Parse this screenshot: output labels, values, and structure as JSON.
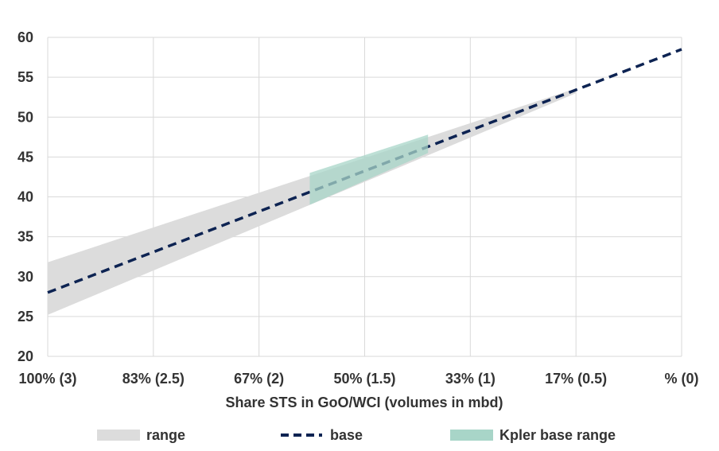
{
  "chart_data": {
    "type": "line",
    "xlabel": "Share STS in GoO/WCI (volumes in mbd)",
    "ylabel": "",
    "x_ticks": [
      "100% (3)",
      "83% (2.5)",
      "67% (2)",
      "50% (1.5)",
      "33% (1)",
      "17% (0.5)",
      "% (0)"
    ],
    "x_values": [
      3,
      2.5,
      2,
      1.5,
      1,
      0.5,
      0
    ],
    "xlim": [
      3,
      0
    ],
    "ylim": [
      20,
      60
    ],
    "y_ticks": [
      "20",
      "25",
      "30",
      "35",
      "40",
      "45",
      "50",
      "55",
      "60"
    ],
    "grid": true,
    "legend_position": "bottom",
    "series": [
      {
        "name": "range",
        "type": "band",
        "color": "#dcdcdc",
        "x": [
          3,
          0.5
        ],
        "lower": [
          25.2,
          53.0
        ],
        "upper": [
          31.8,
          53.6
        ]
      },
      {
        "name": "base",
        "type": "line",
        "style": "dashed",
        "color": "#0d2352",
        "x": [
          3,
          0
        ],
        "values": [
          28.0,
          58.5
        ]
      },
      {
        "name": "Kpler base range",
        "type": "band",
        "color": "#a8d5c8",
        "x": [
          1.76,
          1.2
        ],
        "lower": [
          39.0,
          45.5
        ],
        "upper": [
          43.0,
          47.8
        ]
      }
    ],
    "legend": [
      "range",
      "base",
      "Kpler base range"
    ]
  }
}
